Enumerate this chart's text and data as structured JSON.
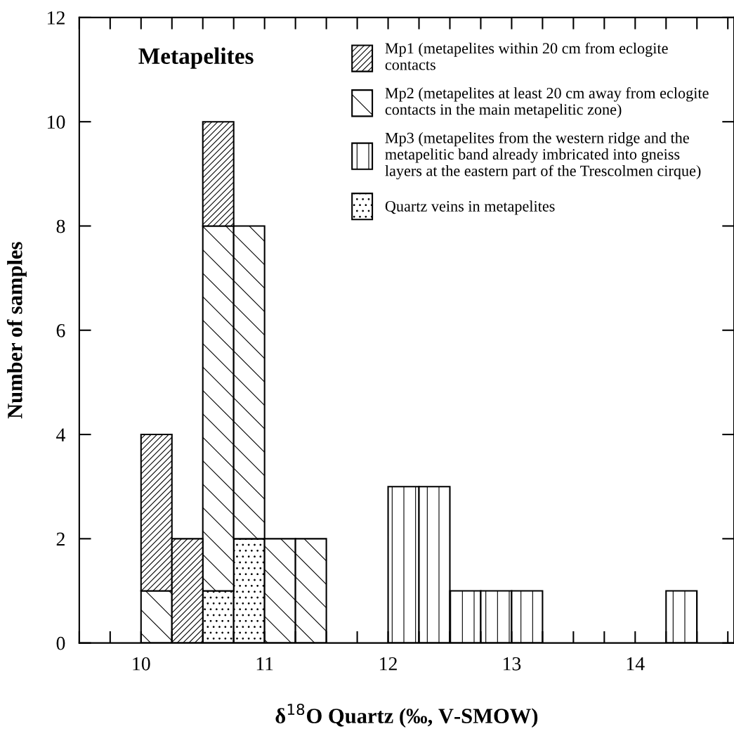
{
  "chart_data": {
    "type": "bar",
    "stacked": true,
    "title": "Metapelites",
    "xlabel": "δ$^{18}$O Quartz (‰, V-SMOW)",
    "ylabel": "Number of samples",
    "x": [
      10.125,
      10.375,
      10.625,
      10.875,
      11.125,
      11.375,
      11.625,
      11.875,
      12.125,
      12.375,
      12.625,
      12.875,
      13.125,
      13.375,
      13.625,
      13.875,
      14.125,
      14.375
    ],
    "series": [
      {
        "name": "Quartz veins in metapelites",
        "color": "#000000",
        "values": [
          null,
          null,
          1,
          2,
          null,
          null,
          null,
          null,
          null,
          null,
          null,
          null,
          null,
          null,
          null,
          null,
          null,
          null
        ]
      },
      {
        "name": "Mp3 (metapelites from the western ridge and the\nmetapelitic band already imbricated into gneiss\nlayers at the eastern part of the Trescolmen cirque)",
        "color": "#000000",
        "values": [
          null,
          null,
          null,
          null,
          null,
          null,
          null,
          null,
          3,
          3,
          1,
          1,
          1,
          null,
          null,
          null,
          null,
          1
        ]
      },
      {
        "name": "Mp2 (metapelites at least 20 cm away from eclogite\ncontacts in the main metapelitic zone)",
        "color": "#000000",
        "values": [
          1,
          null,
          7,
          6,
          2,
          2,
          null,
          null,
          null,
          null,
          null,
          null,
          null,
          null,
          null,
          null,
          null,
          null
        ]
      },
      {
        "name": "Mp1 (metapelites within 20 cm from eclogite\ncontacts",
        "color": "#000000",
        "values": [
          3,
          2,
          2,
          null,
          null,
          null,
          null,
          null,
          null,
          null,
          null,
          null,
          null,
          null,
          null,
          null,
          null,
          null
        ]
      }
    ],
    "xlim": [
      9.5,
      14.8
    ],
    "xticks": [
      10,
      11,
      12,
      13,
      14
    ],
    "ylim": [
      0,
      12
    ],
    "yticks": [
      0,
      2,
      4,
      6,
      8,
      10,
      12
    ],
    "grid": false,
    "legend": "top right"
  }
}
